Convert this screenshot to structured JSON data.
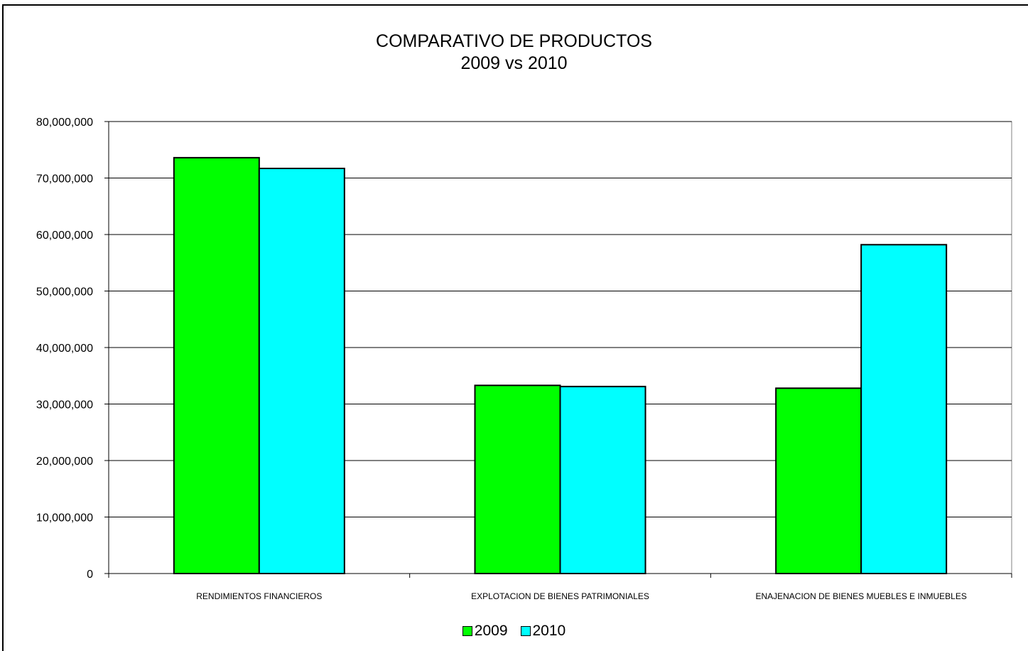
{
  "chart_data": {
    "type": "bar",
    "title": "COMPARATIVO DE PRODUCTOS",
    "subtitle": "2009 vs 2010",
    "categories": [
      "RENDIMIENTOS FINANCIEROS",
      "EXPLOTACION DE BIENES PATRIMONIALES",
      "ENAJENACION DE BIENES MUEBLES E INMUEBLES"
    ],
    "series": [
      {
        "name": "2009",
        "values": [
          73600000,
          33300000,
          32800000
        ],
        "color": "#00ff00"
      },
      {
        "name": "2010",
        "values": [
          71700000,
          33100000,
          58200000
        ],
        "color": "#00ffff"
      }
    ],
    "ylim": [
      0,
      80000000
    ],
    "yticks": [
      0,
      10000000,
      20000000,
      30000000,
      40000000,
      50000000,
      60000000,
      70000000,
      80000000
    ],
    "ytick_labels": [
      "0",
      "10,000,000",
      "20,000,000",
      "30,000,000",
      "40,000,000",
      "50,000,000",
      "60,000,000",
      "70,000,000",
      "80,000,000"
    ],
    "grid": true,
    "legend": "bottom"
  }
}
